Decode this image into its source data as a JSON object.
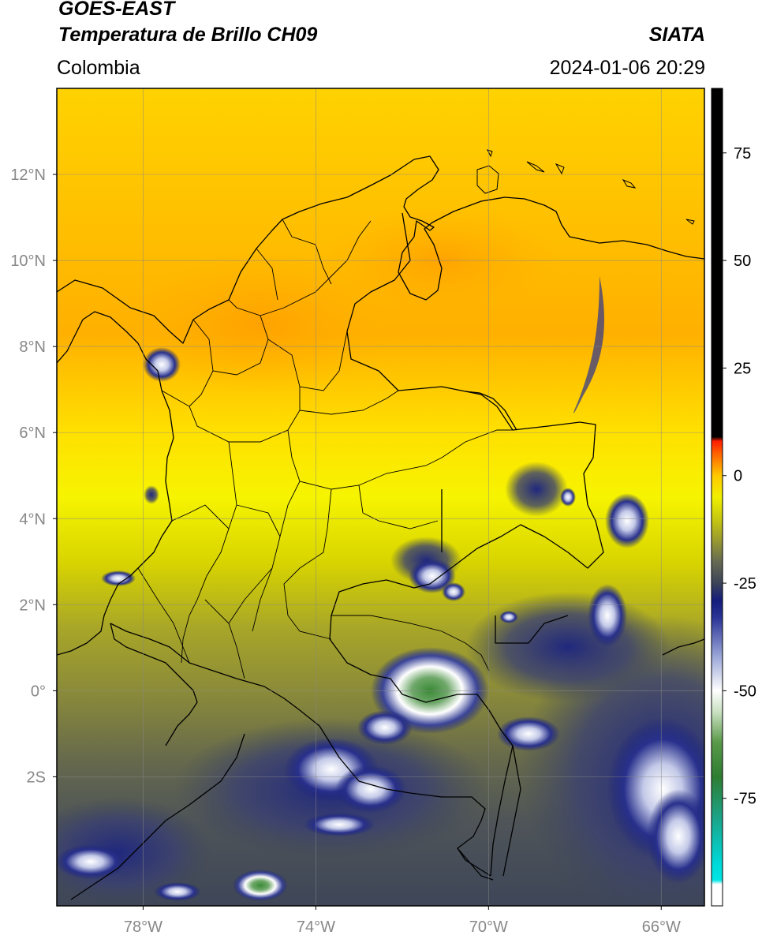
{
  "header": {
    "satellite": "GOES-EAST",
    "product": "Temperatura de Brillo CH09",
    "region": "Colombia",
    "agency": "SIATA",
    "datetime": "2024-01-06 20:29"
  },
  "map": {
    "lon_range": [
      -80,
      -65
    ],
    "lat_range": [
      -5,
      14
    ],
    "x_ticks": [
      {
        "lon": -78,
        "label": "78°W"
      },
      {
        "lon": -74,
        "label": "74°W"
      },
      {
        "lon": -70,
        "label": "70°W"
      },
      {
        "lon": -66,
        "label": "66°W"
      }
    ],
    "y_ticks": [
      {
        "lat": 12,
        "label": "12°N"
      },
      {
        "lat": 10,
        "label": "10°N"
      },
      {
        "lat": 8,
        "label": "8°N"
      },
      {
        "lat": 6,
        "label": "6°N"
      },
      {
        "lat": 4,
        "label": "4°N"
      },
      {
        "lat": 2,
        "label": "2°N"
      },
      {
        "lat": 0,
        "label": "0°"
      },
      {
        "lat": -2,
        "label": "2S"
      }
    ],
    "grid": true
  },
  "colorbar": {
    "range": [
      -100,
      90
    ],
    "ticks": [
      {
        "value": 75,
        "label": "75"
      },
      {
        "value": 50,
        "label": "50"
      },
      {
        "value": 25,
        "label": "25"
      },
      {
        "value": 0,
        "label": "0"
      },
      {
        "value": -25,
        "label": "-25"
      },
      {
        "value": -50,
        "label": "-50"
      },
      {
        "value": -75,
        "label": "-75"
      }
    ],
    "stops": [
      {
        "value": -100,
        "color": "#ffffff"
      },
      {
        "value": -95,
        "color": "#ffffff"
      },
      {
        "value": -94,
        "color": "#00e5e5"
      },
      {
        "value": -90,
        "color": "#00d8d8"
      },
      {
        "value": -80,
        "color": "#1aa68c"
      },
      {
        "value": -70,
        "color": "#2e7d32"
      },
      {
        "value": -62,
        "color": "#5a9a4a"
      },
      {
        "value": -55,
        "color": "#c8e0c0"
      },
      {
        "value": -50,
        "color": "#ffffff"
      },
      {
        "value": -42,
        "color": "#9aa6d8"
      },
      {
        "value": -33,
        "color": "#2a3496"
      },
      {
        "value": -29,
        "color": "#141c7c"
      },
      {
        "value": -25,
        "color": "#3c4458"
      },
      {
        "value": -20,
        "color": "#666a52"
      },
      {
        "value": -15,
        "color": "#9a9a30"
      },
      {
        "value": -10,
        "color": "#c8c810"
      },
      {
        "value": -5,
        "color": "#f0f000"
      },
      {
        "value": 0,
        "color": "#ffc800"
      },
      {
        "value": 5,
        "color": "#ff6400"
      },
      {
        "value": 8,
        "color": "#ff1e00"
      },
      {
        "value": 9,
        "color": "#000000"
      },
      {
        "value": 90,
        "color": "#000000"
      }
    ]
  }
}
